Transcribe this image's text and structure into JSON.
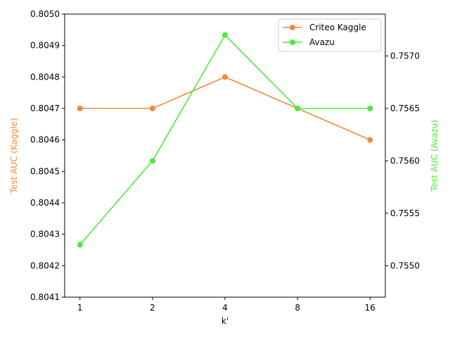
{
  "chart_data": {
    "type": "line",
    "categories": [
      "1",
      "2",
      "4",
      "8",
      "16"
    ],
    "xlabel": "k'",
    "y_left": {
      "label": "Test AUC (Kaggle)",
      "range": [
        0.8041,
        0.805
      ],
      "ticks": [
        "0.8041",
        "0.8042",
        "0.8043",
        "0.8044",
        "0.8045",
        "0.8046",
        "0.8047",
        "0.8048",
        "0.8049",
        "0.8050"
      ],
      "color": "#F0883E"
    },
    "y_right": {
      "label": "Test AUC (Avazu)",
      "range": [
        0.7547,
        0.7574
      ],
      "ticks": [
        "0.7550",
        "0.7555",
        "0.7560",
        "0.7565",
        "0.7570"
      ],
      "color": "#4CEB3C"
    },
    "series": [
      {
        "name": "Criteo Kaggle",
        "axis": "left",
        "color": "#F0883E",
        "values": [
          0.8047,
          0.8047,
          0.8048,
          0.8047,
          0.8046
        ]
      },
      {
        "name": "Avazu",
        "axis": "right",
        "color": "#4CEB3C",
        "values": [
          0.7552,
          0.756,
          0.7572,
          0.7565,
          0.7565
        ]
      }
    ],
    "legend": "upper-right",
    "grid": false
  }
}
